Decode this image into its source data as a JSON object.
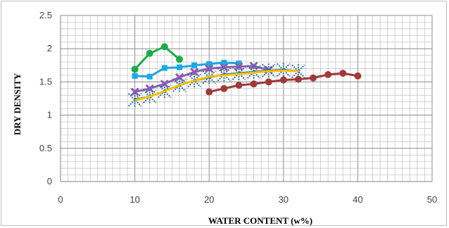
{
  "chart_data": {
    "type": "line",
    "title": "",
    "xlabel": "WATER CONTENT (w%)",
    "ylabel": "DRY DENSITY",
    "xlim": [
      0,
      50
    ],
    "ylim": [
      0,
      2.5
    ],
    "x_ticks": [
      0,
      10,
      20,
      30,
      40,
      50
    ],
    "y_ticks": [
      0,
      0.5,
      1,
      1.5,
      2,
      2.5
    ],
    "y_tick_labels": [
      "0",
      "0.5",
      "1",
      "1.5",
      "2",
      "2.5"
    ],
    "grid": true,
    "legend": "none",
    "series": [
      {
        "color": "#1faa4a",
        "marker": "circle",
        "x": [
          10,
          12,
          14,
          16
        ],
        "y": [
          1.69,
          1.93,
          2.03,
          1.84
        ]
      },
      {
        "color": "#1ca8e0",
        "marker": "square",
        "x": [
          10,
          12,
          14,
          16,
          18,
          20,
          22,
          24
        ],
        "y": [
          1.59,
          1.58,
          1.71,
          1.72,
          1.75,
          1.77,
          1.79,
          1.78
        ]
      },
      {
        "color": "#8b5fb0",
        "marker": "x",
        "x": [
          10,
          12,
          14,
          16,
          18,
          20,
          22,
          24,
          26,
          28
        ],
        "y": [
          1.35,
          1.4,
          1.47,
          1.57,
          1.65,
          1.7,
          1.72,
          1.73,
          1.74,
          1.68
        ]
      },
      {
        "color": "#2f6f96",
        "marker": "star",
        "x": [
          10,
          12,
          14,
          16,
          18,
          20,
          22,
          24,
          26,
          28,
          30,
          32
        ],
        "y": [
          1.23,
          1.28,
          1.36,
          1.45,
          1.52,
          1.57,
          1.61,
          1.63,
          1.65,
          1.67,
          1.68,
          1.66
        ]
      },
      {
        "color": "#ffc000",
        "marker": "none",
        "x": [
          10,
          12,
          14,
          16,
          18,
          20,
          22,
          24,
          26,
          28,
          30,
          32
        ],
        "y": [
          1.22,
          1.28,
          1.36,
          1.45,
          1.52,
          1.58,
          1.6,
          1.62,
          1.64,
          1.66,
          1.67,
          1.66
        ]
      },
      {
        "color": "#9e3a3a",
        "marker": "circle",
        "x": [
          20,
          22,
          24,
          26,
          28,
          30,
          32,
          34,
          36,
          38,
          40
        ],
        "y": [
          1.35,
          1.4,
          1.45,
          1.47,
          1.5,
          1.53,
          1.54,
          1.56,
          1.61,
          1.63,
          1.59
        ]
      }
    ]
  }
}
